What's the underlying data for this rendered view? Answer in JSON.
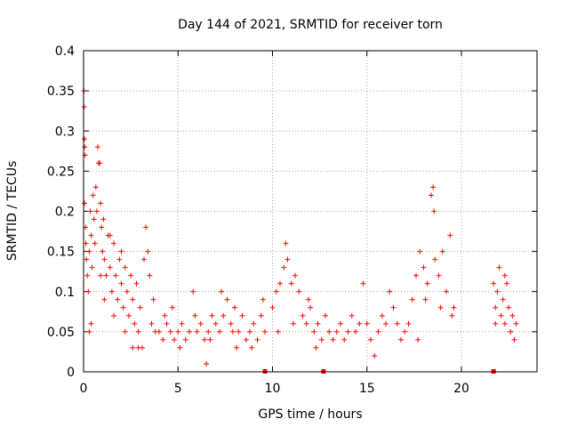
{
  "chart_data": {
    "type": "scatter",
    "title": "Day 144 of 2021, SRMTID for receiver torn",
    "xlabel": "GPS time / hours",
    "ylabel": "SRMTID / TECUs",
    "xlim": [
      0,
      24
    ],
    "ylim": [
      0,
      0.4
    ],
    "x_ticks": [
      0,
      5,
      10,
      15,
      20
    ],
    "x_tick_labels": [
      "0",
      "5",
      "10",
      "15",
      "20"
    ],
    "y_ticks": [
      0,
      0.05,
      0.1,
      0.15,
      0.2,
      0.25,
      0.3,
      0.35,
      0.4
    ],
    "y_tick_labels": [
      "0",
      "0.05",
      "0.1",
      "0.15",
      "0.2",
      "0.25",
      "0.3",
      "0.35",
      "0.4"
    ],
    "grid": true,
    "marker": "plus",
    "color": "#ff0000",
    "series": [
      {
        "points": [
          [
            0.02,
            0.35
          ],
          [
            0.03,
            0.33
          ],
          [
            0.05,
            0.29
          ],
          [
            0.06,
            0.28
          ],
          [
            0.08,
            0.27
          ],
          [
            0.05,
            0.21
          ],
          [
            0.1,
            0.18
          ],
          [
            0.12,
            0.16
          ],
          [
            0.15,
            0.14
          ],
          [
            0.2,
            0.12
          ],
          [
            0.25,
            0.1
          ],
          [
            0.3,
            0.15
          ],
          [
            0.35,
            0.2
          ],
          [
            0.4,
            0.17
          ],
          [
            0.45,
            0.13
          ],
          [
            0.5,
            0.22
          ],
          [
            0.55,
            0.19
          ],
          [
            0.6,
            0.16
          ],
          [
            0.65,
            0.23
          ],
          [
            0.7,
            0.2
          ],
          [
            0.75,
            0.28
          ],
          [
            0.8,
            0.26
          ],
          [
            0.85,
            0.26
          ],
          [
            0.9,
            0.21
          ],
          [
            0.95,
            0.18
          ],
          [
            1.0,
            0.15
          ],
          [
            1.05,
            0.19
          ],
          [
            1.1,
            0.14
          ],
          [
            1.2,
            0.12
          ],
          [
            1.3,
            0.17
          ],
          [
            1.4,
            0.13
          ],
          [
            1.5,
            0.1
          ],
          [
            1.6,
            0.16
          ],
          [
            1.7,
            0.12
          ],
          [
            1.8,
            0.09
          ],
          [
            1.9,
            0.14
          ],
          [
            2.0,
            0.11
          ],
          [
            2.1,
            0.08
          ],
          [
            2.2,
            0.13
          ],
          [
            2.3,
            0.1
          ],
          [
            2.4,
            0.07
          ],
          [
            2.5,
            0.12
          ],
          [
            2.6,
            0.09
          ],
          [
            2.7,
            0.06
          ],
          [
            2.8,
            0.11
          ],
          [
            2.9,
            0.05
          ],
          [
            3.0,
            0.08
          ],
          [
            3.1,
            0.03
          ],
          [
            3.2,
            0.14
          ],
          [
            3.3,
            0.18
          ],
          [
            3.4,
            0.15
          ],
          [
            3.5,
            0.12
          ],
          [
            3.6,
            0.06
          ],
          [
            3.7,
            0.09
          ],
          [
            3.8,
            0.05
          ],
          [
            0.3,
            0.05
          ],
          [
            0.4,
            0.06
          ],
          [
            1.1,
            0.09
          ],
          [
            1.6,
            0.07
          ],
          [
            2.2,
            0.05
          ],
          [
            2.6,
            0.03
          ],
          [
            2.9,
            0.03
          ],
          [
            0.9,
            0.12
          ],
          [
            1.4,
            0.17
          ],
          [
            2.0,
            0.15
          ],
          [
            4.0,
            0.05
          ],
          [
            4.2,
            0.04
          ],
          [
            4.4,
            0.06
          ],
          [
            4.6,
            0.05
          ],
          [
            4.8,
            0.04
          ],
          [
            5.0,
            0.05
          ],
          [
            5.2,
            0.06
          ],
          [
            5.4,
            0.04
          ],
          [
            5.6,
            0.05
          ],
          [
            5.8,
            0.1
          ],
          [
            6.0,
            0.05
          ],
          [
            6.2,
            0.06
          ],
          [
            6.4,
            0.04
          ],
          [
            6.5,
            0.01
          ],
          [
            6.6,
            0.05
          ],
          [
            6.8,
            0.07
          ],
          [
            7.0,
            0.06
          ],
          [
            7.2,
            0.05
          ],
          [
            7.4,
            0.07
          ],
          [
            7.6,
            0.09
          ],
          [
            7.8,
            0.06
          ],
          [
            8.0,
            0.08
          ],
          [
            8.2,
            0.05
          ],
          [
            8.4,
            0.07
          ],
          [
            8.6,
            0.04
          ],
          [
            8.8,
            0.05
          ],
          [
            9.0,
            0.06
          ],
          [
            9.2,
            0.04
          ],
          [
            9.4,
            0.07
          ],
          [
            9.6,
            0.05
          ],
          [
            4.3,
            0.07
          ],
          [
            5.1,
            0.03
          ],
          [
            5.9,
            0.07
          ],
          [
            6.7,
            0.04
          ],
          [
            7.3,
            0.1
          ],
          [
            8.1,
            0.03
          ],
          [
            8.9,
            0.03
          ],
          [
            9.5,
            0.09
          ],
          [
            4.7,
            0.08
          ],
          [
            7.9,
            0.05
          ],
          [
            10.0,
            0.08
          ],
          [
            10.2,
            0.1
          ],
          [
            10.4,
            0.11
          ],
          [
            10.6,
            0.13
          ],
          [
            10.7,
            0.16
          ],
          [
            10.8,
            0.14
          ],
          [
            11.0,
            0.11
          ],
          [
            11.2,
            0.12
          ],
          [
            11.4,
            0.1
          ],
          [
            11.6,
            0.07
          ],
          [
            11.8,
            0.06
          ],
          [
            12.0,
            0.08
          ],
          [
            12.2,
            0.05
          ],
          [
            12.4,
            0.06
          ],
          [
            12.6,
            0.04
          ],
          [
            12.8,
            0.07
          ],
          [
            13.0,
            0.05
          ],
          [
            10.3,
            0.05
          ],
          [
            11.1,
            0.06
          ],
          [
            11.9,
            0.09
          ],
          [
            12.3,
            0.03
          ],
          [
            13.2,
            0.04
          ],
          [
            13.4,
            0.05
          ],
          [
            13.6,
            0.06
          ],
          [
            13.8,
            0.04
          ],
          [
            14.0,
            0.05
          ],
          [
            14.2,
            0.07
          ],
          [
            14.4,
            0.05
          ],
          [
            14.6,
            0.06
          ],
          [
            14.8,
            0.11
          ],
          [
            15.0,
            0.06
          ],
          [
            15.2,
            0.04
          ],
          [
            15.4,
            0.02
          ],
          [
            15.6,
            0.05
          ],
          [
            15.8,
            0.07
          ],
          [
            16.0,
            0.06
          ],
          [
            16.2,
            0.1
          ],
          [
            16.4,
            0.08
          ],
          [
            16.6,
            0.06
          ],
          [
            16.8,
            0.04
          ],
          [
            17.0,
            0.05
          ],
          [
            17.2,
            0.06
          ],
          [
            17.4,
            0.09
          ],
          [
            17.6,
            0.12
          ],
          [
            17.8,
            0.15
          ],
          [
            18.0,
            0.13
          ],
          [
            18.2,
            0.11
          ],
          [
            18.4,
            0.22
          ],
          [
            18.5,
            0.23
          ],
          [
            18.55,
            0.2
          ],
          [
            18.6,
            0.14
          ],
          [
            18.8,
            0.12
          ],
          [
            19.0,
            0.15
          ],
          [
            19.2,
            0.1
          ],
          [
            19.4,
            0.17
          ],
          [
            19.5,
            0.07
          ],
          [
            19.6,
            0.08
          ],
          [
            18.9,
            0.08
          ],
          [
            18.1,
            0.09
          ],
          [
            17.7,
            0.04
          ],
          [
            21.7,
            0.11
          ],
          [
            21.8,
            0.08
          ],
          [
            21.9,
            0.1
          ],
          [
            22.0,
            0.13
          ],
          [
            22.1,
            0.07
          ],
          [
            22.2,
            0.09
          ],
          [
            22.3,
            0.06
          ],
          [
            22.4,
            0.11
          ],
          [
            22.5,
            0.08
          ],
          [
            22.6,
            0.05
          ],
          [
            22.7,
            0.07
          ],
          [
            22.8,
            0.04
          ],
          [
            21.8,
            0.06
          ],
          [
            22.3,
            0.12
          ],
          [
            22.9,
            0.06
          ]
        ]
      }
    ],
    "markers_on_axis": [
      9.6,
      12.7,
      21.7
    ]
  }
}
